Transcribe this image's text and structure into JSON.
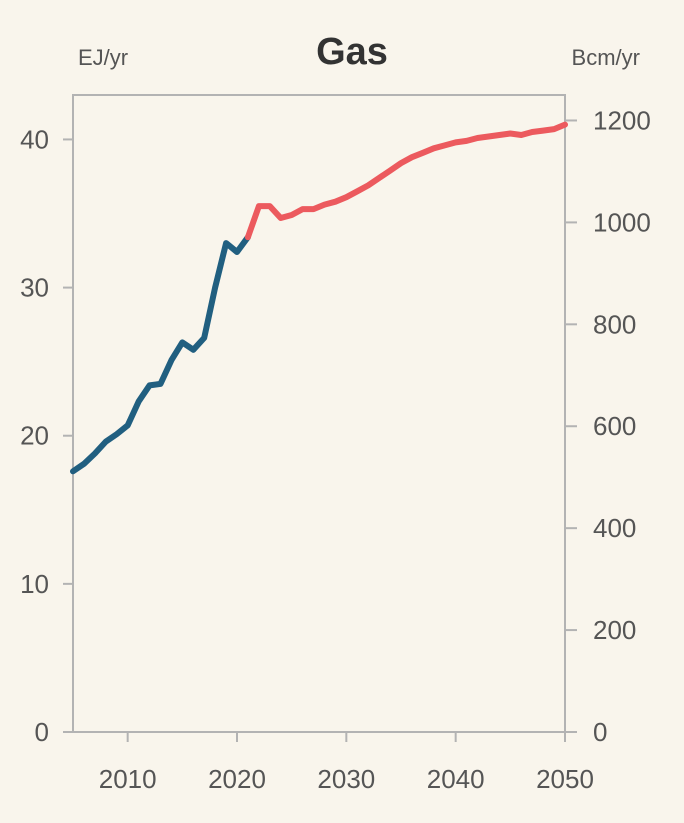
{
  "chart_data": {
    "type": "line",
    "title": "Gas",
    "left_unit": "EJ/yr",
    "right_unit": "Bcm/yr",
    "x_range": [
      2005,
      2050
    ],
    "y_left_range": [
      0,
      43
    ],
    "y_right_range": [
      0,
      1250
    ],
    "x_ticks": [
      2010,
      2020,
      2030,
      2040,
      2050
    ],
    "y_left_ticks": [
      0,
      10,
      20,
      30,
      40
    ],
    "y_right_ticks": [
      0,
      200,
      400,
      600,
      800,
      1000,
      1200
    ],
    "grid": false,
    "colors": {
      "historical": "#215f80",
      "projection": "#ec5a5e",
      "axis": "#b3b3b3"
    },
    "series": [
      {
        "segment": "historical",
        "x": [
          2005,
          2006,
          2007,
          2008,
          2009,
          2010,
          2011,
          2012,
          2013,
          2014,
          2015,
          2016,
          2017,
          2018,
          2019,
          2020,
          2021
        ],
        "y": [
          17.6,
          18.1,
          18.8,
          19.6,
          20.1,
          20.7,
          22.3,
          23.4,
          23.5,
          25.1,
          26.3,
          25.8,
          26.6,
          30.0,
          33.0,
          32.4,
          33.4
        ]
      },
      {
        "segment": "projection",
        "x": [
          2021,
          2022,
          2023,
          2024,
          2025,
          2026,
          2027,
          2028,
          2029,
          2030,
          2031,
          2032,
          2033,
          2034,
          2035,
          2036,
          2037,
          2038,
          2039,
          2040,
          2041,
          2042,
          2043,
          2044,
          2045,
          2046,
          2047,
          2048,
          2049,
          2050
        ],
        "y": [
          33.4,
          35.5,
          35.5,
          34.7,
          34.9,
          35.3,
          35.3,
          35.6,
          35.8,
          36.1,
          36.5,
          36.9,
          37.4,
          37.9,
          38.4,
          38.8,
          39.1,
          39.4,
          39.6,
          39.8,
          39.9,
          40.1,
          40.2,
          40.3,
          40.4,
          40.3,
          40.5,
          40.6,
          40.7,
          41.0
        ]
      }
    ]
  }
}
